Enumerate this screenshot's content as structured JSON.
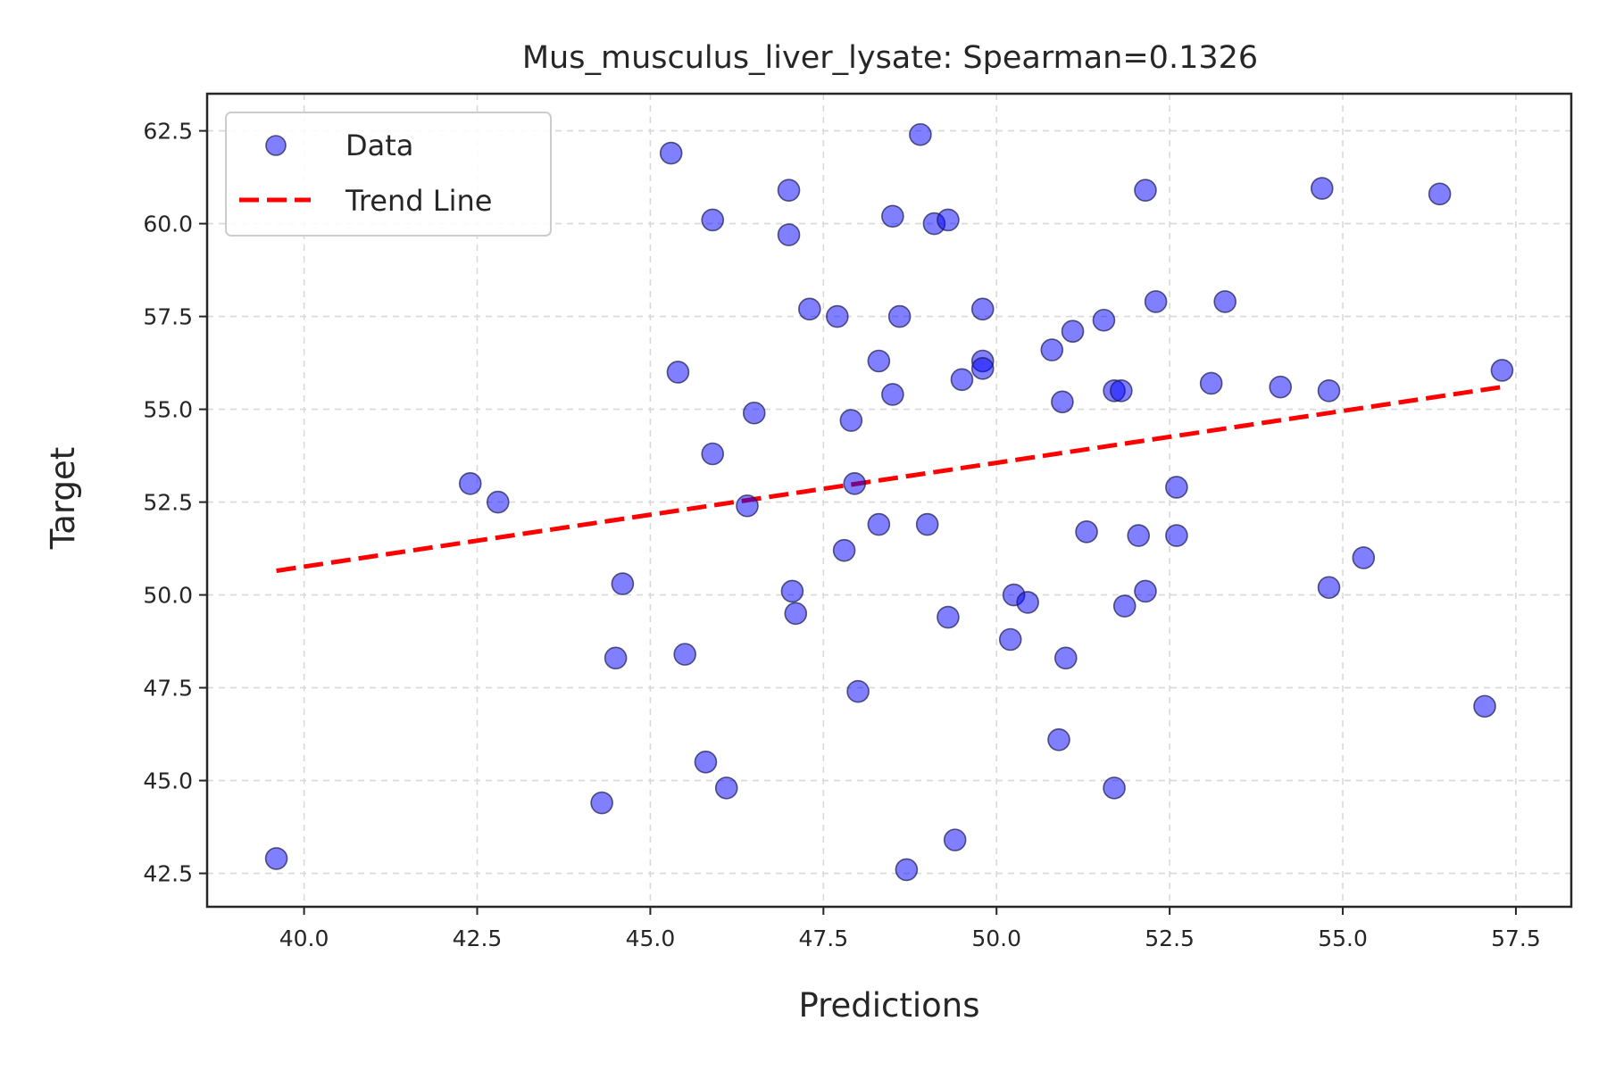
{
  "chart_data": {
    "type": "scatter",
    "title": "Mus_musculus_liver_lysate: Spearman=0.1326",
    "xlabel": "Predictions",
    "ylabel": "Target",
    "xlim": [
      38.6,
      58.3
    ],
    "ylim": [
      41.6,
      63.5
    ],
    "xticks": [
      "40.0",
      "42.5",
      "45.0",
      "47.5",
      "50.0",
      "52.5",
      "55.0",
      "57.5"
    ],
    "yticks": [
      "42.5",
      "45.0",
      "47.5",
      "50.0",
      "52.5",
      "55.0",
      "57.5",
      "60.0",
      "62.5"
    ],
    "grid": true,
    "legend_position": "upper-left",
    "colors": {
      "points": "#0000ff",
      "point_edge": "#1a1a4a",
      "trend": "#ff0000"
    },
    "series": [
      {
        "name": "Data",
        "kind": "scatter",
        "points": [
          [
            39.6,
            42.9
          ],
          [
            42.4,
            53.0
          ],
          [
            42.8,
            52.5
          ],
          [
            44.3,
            44.4
          ],
          [
            44.5,
            48.3
          ],
          [
            44.6,
            50.3
          ],
          [
            45.3,
            61.9
          ],
          [
            45.4,
            56.0
          ],
          [
            45.5,
            48.4
          ],
          [
            45.8,
            45.5
          ],
          [
            45.9,
            60.1
          ],
          [
            45.9,
            53.8
          ],
          [
            46.1,
            44.8
          ],
          [
            46.4,
            52.4
          ],
          [
            46.5,
            54.9
          ],
          [
            47.0,
            60.9
          ],
          [
            47.0,
            59.7
          ],
          [
            47.05,
            50.1
          ],
          [
            47.1,
            49.5
          ],
          [
            47.3,
            57.7
          ],
          [
            47.7,
            57.5
          ],
          [
            47.8,
            51.2
          ],
          [
            47.9,
            54.7
          ],
          [
            47.95,
            53.0
          ],
          [
            48.0,
            47.4
          ],
          [
            48.3,
            51.9
          ],
          [
            48.3,
            56.3
          ],
          [
            48.5,
            60.2
          ],
          [
            48.5,
            55.4
          ],
          [
            48.6,
            57.5
          ],
          [
            48.7,
            42.6
          ],
          [
            48.9,
            62.4
          ],
          [
            49.0,
            51.9
          ],
          [
            49.1,
            60.0
          ],
          [
            49.3,
            60.1
          ],
          [
            49.3,
            49.4
          ],
          [
            49.4,
            43.4
          ],
          [
            49.5,
            55.8
          ],
          [
            49.8,
            57.7
          ],
          [
            49.8,
            56.3
          ],
          [
            49.8,
            56.1
          ],
          [
            50.2,
            48.8
          ],
          [
            50.25,
            50.0
          ],
          [
            50.45,
            49.8
          ],
          [
            50.8,
            56.6
          ],
          [
            50.9,
            46.1
          ],
          [
            50.95,
            55.2
          ],
          [
            51.0,
            48.3
          ],
          [
            51.1,
            57.1
          ],
          [
            51.3,
            51.7
          ],
          [
            51.55,
            57.4
          ],
          [
            51.7,
            44.8
          ],
          [
            51.7,
            55.5
          ],
          [
            51.8,
            55.5
          ],
          [
            51.85,
            49.7
          ],
          [
            52.05,
            51.6
          ],
          [
            52.15,
            60.9
          ],
          [
            52.15,
            50.1
          ],
          [
            52.3,
            57.9
          ],
          [
            52.6,
            52.9
          ],
          [
            52.6,
            51.6
          ],
          [
            53.1,
            55.7
          ],
          [
            53.3,
            57.9
          ],
          [
            54.1,
            55.6
          ],
          [
            54.7,
            60.95
          ],
          [
            54.8,
            55.5
          ],
          [
            54.8,
            50.2
          ],
          [
            55.3,
            51.0
          ],
          [
            56.4,
            60.8
          ],
          [
            57.05,
            47.0
          ],
          [
            57.3,
            56.05
          ]
        ]
      },
      {
        "name": "Trend Line",
        "kind": "line",
        "style": "dashed",
        "points": [
          [
            39.6,
            50.65
          ],
          [
            57.3,
            55.6
          ]
        ]
      }
    ]
  }
}
